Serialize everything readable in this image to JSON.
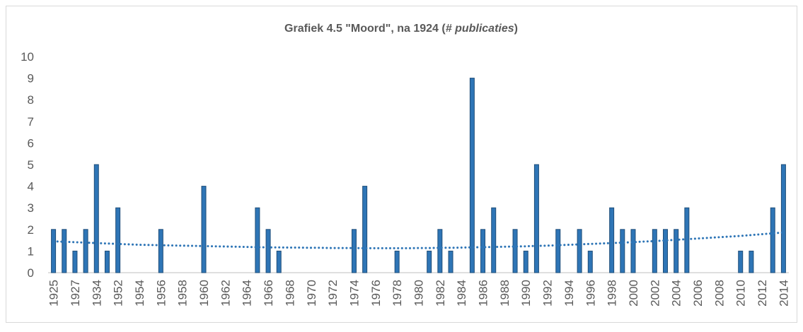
{
  "chart_data": {
    "type": "bar",
    "title_parts": [
      "Grafiek 4.5 \"Moord\", na 1924 (",
      "# publicaties",
      ")"
    ],
    "categories": [
      "1925",
      null,
      "1927",
      null,
      "1934",
      null,
      "1952",
      null,
      "1954",
      null,
      "1956",
      null,
      "1958",
      null,
      "1960",
      null,
      "1962",
      null,
      "1964",
      null,
      "1966",
      null,
      "1968",
      null,
      "1970",
      null,
      "1972",
      null,
      "1974",
      null,
      "1976",
      null,
      "1978",
      null,
      "1980",
      null,
      "1982",
      null,
      "1984",
      null,
      "1986",
      null,
      "1988",
      null,
      "1990",
      null,
      "1992",
      null,
      "1994",
      null,
      "1996",
      null,
      "1998",
      null,
      "2000",
      null,
      "2002",
      null,
      "2004",
      null,
      "2006",
      null,
      "2008",
      null,
      "2010",
      null,
      "2012",
      null,
      "2014"
    ],
    "values": [
      2,
      2,
      1,
      2,
      5,
      1,
      3,
      0,
      0,
      0,
      2,
      0,
      0,
      0,
      4,
      0,
      0,
      0,
      0,
      3,
      2,
      1,
      0,
      0,
      0,
      0,
      0,
      0,
      2,
      4,
      0,
      0,
      1,
      0,
      0,
      1,
      2,
      1,
      0,
      9,
      2,
      3,
      0,
      2,
      1,
      5,
      0,
      2,
      0,
      2,
      1,
      0,
      3,
      2,
      2,
      0,
      2,
      2,
      2,
      3,
      0,
      0,
      0,
      0,
      1,
      1,
      0,
      3,
      5
    ],
    "color": "#2e75b6",
    "trendline": {
      "color": "#2e75b6",
      "values": [
        1.45,
        1.43,
        1.41,
        1.39,
        1.37,
        1.35,
        1.33,
        1.31,
        1.29,
        1.28,
        1.27,
        1.26,
        1.25,
        1.24,
        1.23,
        1.22,
        1.21,
        1.2,
        1.19,
        1.18,
        1.17,
        1.17,
        1.16,
        1.16,
        1.15,
        1.15,
        1.14,
        1.14,
        1.14,
        1.13,
        1.13,
        1.13,
        1.13,
        1.13,
        1.14,
        1.14,
        1.15,
        1.15,
        1.16,
        1.17,
        1.18,
        1.19,
        1.2,
        1.21,
        1.22,
        1.24,
        1.25,
        1.27,
        1.29,
        1.31,
        1.33,
        1.35,
        1.37,
        1.39,
        1.41,
        1.44,
        1.46,
        1.49,
        1.52,
        1.55,
        1.58,
        1.61,
        1.64,
        1.67,
        1.7,
        1.74,
        1.78,
        1.82,
        1.86
      ]
    },
    "ylim": [
      0,
      10
    ],
    "yticks": [
      0,
      1,
      2,
      3,
      4,
      5,
      6,
      7,
      8,
      9,
      10
    ],
    "grid": false
  }
}
